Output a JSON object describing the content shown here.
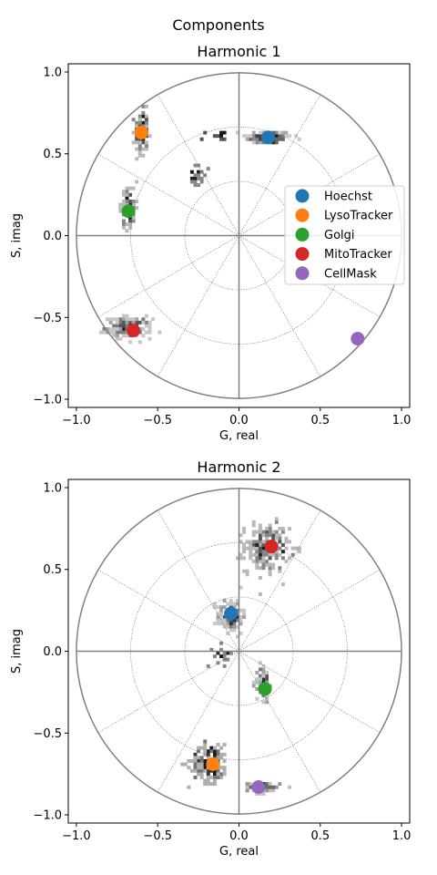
{
  "figure": {
    "suptitle": "Components"
  },
  "chart_data": [
    {
      "type": "scatter",
      "title": "Harmonic 1",
      "xlabel": "G, real",
      "ylabel": "S, imag",
      "xlim": [
        -1.05,
        1.05
      ],
      "ylim": [
        -1.05,
        1.05
      ],
      "xticks": [
        "−1.0",
        "−0.5",
        "0.0",
        "0.5",
        "1.0"
      ],
      "yticks": [
        "−1.0",
        "−0.5",
        "0.0",
        "0.5",
        "1.0"
      ],
      "xtick_values": [
        -1.0,
        -0.5,
        0.0,
        0.5,
        1.0
      ],
      "ytick_values": [
        -1.0,
        -0.5,
        0.0,
        0.5,
        1.0
      ],
      "grid": "polar",
      "legend": "center-right",
      "series": [
        {
          "name": "Hoechst",
          "color": "#1f77b4",
          "x": [
            0.18
          ],
          "y": [
            0.6
          ]
        },
        {
          "name": "LysoTracker",
          "color": "#ff7f0e",
          "x": [
            -0.6
          ],
          "y": [
            0.63
          ]
        },
        {
          "name": "Golgi",
          "color": "#2ca02c",
          "x": [
            -0.68
          ],
          "y": [
            0.15
          ]
        },
        {
          "name": "MitoTracker",
          "color": "#d62728",
          "x": [
            -0.65
          ],
          "y": [
            -0.58
          ]
        },
        {
          "name": "CellMask",
          "color": "#9467bd",
          "x": [
            0.73
          ],
          "y": [
            -0.63
          ]
        }
      ],
      "histogram_clusters": [
        {
          "x": 0.18,
          "y": 0.6,
          "sx": 0.07,
          "sy": 0.02,
          "n": 160
        },
        {
          "x": -0.6,
          "y": 0.63,
          "sx": 0.02,
          "sy": 0.07,
          "n": 120
        },
        {
          "x": -0.68,
          "y": 0.17,
          "sx": 0.02,
          "sy": 0.06,
          "n": 90
        },
        {
          "x": -0.68,
          "y": -0.56,
          "sx": 0.07,
          "sy": 0.03,
          "n": 170
        },
        {
          "x": -0.26,
          "y": 0.36,
          "sx": 0.02,
          "sy": 0.03,
          "n": 25
        },
        {
          "x": -0.15,
          "y": 0.62,
          "sx": 0.04,
          "sy": 0.02,
          "n": 12
        }
      ]
    },
    {
      "type": "scatter",
      "title": "Harmonic 2",
      "xlabel": "G, real",
      "ylabel": "S, imag",
      "xlim": [
        -1.05,
        1.05
      ],
      "ylim": [
        -1.05,
        1.05
      ],
      "xticks": [
        "−1.0",
        "−0.5",
        "0.0",
        "0.5",
        "1.0"
      ],
      "yticks": [
        "−1.0",
        "−0.5",
        "0.0",
        "0.5",
        "1.0"
      ],
      "xtick_values": [
        -1.0,
        -0.5,
        0.0,
        0.5,
        1.0
      ],
      "ytick_values": [
        -1.0,
        -0.5,
        0.0,
        0.5,
        1.0
      ],
      "grid": "polar",
      "series": [
        {
          "name": "Hoechst",
          "color": "#1f77b4",
          "x": [
            -0.05
          ],
          "y": [
            0.23
          ]
        },
        {
          "name": "LysoTracker",
          "color": "#ff7f0e",
          "x": [
            -0.16
          ],
          "y": [
            -0.69
          ]
        },
        {
          "name": "Golgi",
          "color": "#2ca02c",
          "x": [
            0.16
          ],
          "y": [
            -0.23
          ]
        },
        {
          "name": "MitoTracker",
          "color": "#d62728",
          "x": [
            0.2
          ],
          "y": [
            0.64
          ]
        },
        {
          "name": "CellMask",
          "color": "#9467bd",
          "x": [
            0.12
          ],
          "y": [
            -0.83
          ]
        }
      ],
      "histogram_clusters": [
        {
          "x": 0.17,
          "y": 0.63,
          "sx": 0.07,
          "sy": 0.07,
          "n": 230
        },
        {
          "x": -0.05,
          "y": 0.22,
          "sx": 0.04,
          "sy": 0.05,
          "n": 130
        },
        {
          "x": 0.15,
          "y": -0.2,
          "sx": 0.02,
          "sy": 0.06,
          "n": 90
        },
        {
          "x": -0.18,
          "y": -0.68,
          "sx": 0.06,
          "sy": 0.06,
          "n": 170
        },
        {
          "x": 0.15,
          "y": -0.83,
          "sx": 0.05,
          "sy": 0.015,
          "n": 60
        },
        {
          "x": -0.1,
          "y": -0.02,
          "sx": 0.03,
          "sy": 0.03,
          "n": 20
        }
      ]
    }
  ]
}
